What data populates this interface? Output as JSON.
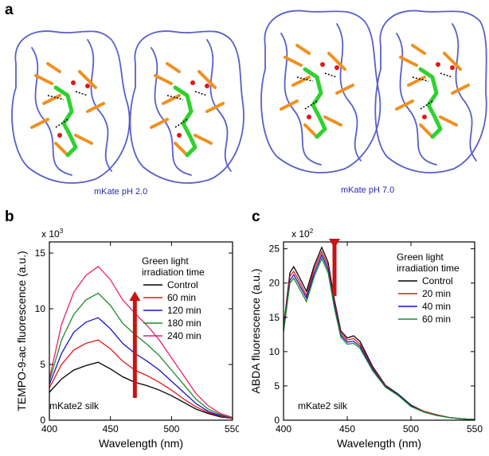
{
  "figure": {
    "panel_a": {
      "letter": "a",
      "left_caption": "mKate pH 2.0",
      "right_caption": "mKate pH 7.0"
    },
    "panel_b": {
      "letter": "b",
      "multiplier": "x 10",
      "multiplier_exp": "3",
      "sample_label": "mKate2 silk"
    },
    "panel_c": {
      "letter": "c",
      "multiplier": "x 10",
      "multiplier_exp": "2",
      "sample_label": "mKate2 silk"
    },
    "colors": {
      "protein_backbone": "#5a5fc8",
      "residues": "#f0901e",
      "chromophore": "#2fd12f",
      "arrow": "#c81414"
    }
  },
  "chart_data": [
    {
      "type": "line",
      "panel": "b",
      "xlabel": "Wavelength (nm)",
      "ylabel": "TEMPO-9-ac fluorescence (a.u.)",
      "xlim": [
        400,
        550
      ],
      "ylim": [
        0,
        16
      ],
      "x_ticks": [
        "400",
        "450",
        "500",
        "550"
      ],
      "y_ticks": [
        "0",
        "5",
        "10",
        "15"
      ],
      "legend_title": [
        "Green light",
        "irradiation time"
      ],
      "legend_position": "top-right",
      "arrow_direction": "up",
      "x": [
        400,
        410,
        420,
        430,
        440,
        450,
        460,
        470,
        480,
        490,
        500,
        510,
        520,
        530,
        540,
        550
      ],
      "series": [
        {
          "name": "Control",
          "color": "#000000",
          "values": [
            2.5,
            3.7,
            4.5,
            4.9,
            5.2,
            4.6,
            3.9,
            3.4,
            3.1,
            2.7,
            2.2,
            1.6,
            1.0,
            0.6,
            0.3,
            0.15
          ]
        },
        {
          "name": "60 min",
          "color": "#e8161c",
          "values": [
            2.9,
            5.0,
            6.3,
            6.9,
            7.2,
            6.4,
            5.3,
            4.5,
            4.0,
            3.4,
            2.7,
            1.9,
            1.2,
            0.7,
            0.35,
            0.15
          ]
        },
        {
          "name": "120 min",
          "color": "#1414c8",
          "values": [
            3.2,
            6.0,
            7.9,
            8.8,
            9.2,
            8.2,
            6.9,
            6.0,
            5.3,
            4.5,
            3.5,
            2.5,
            1.5,
            0.8,
            0.4,
            0.2
          ]
        },
        {
          "name": "180 min",
          "color": "#1a8a2a",
          "values": [
            3.5,
            7.2,
            9.5,
            10.8,
            11.4,
            10.3,
            8.7,
            7.7,
            6.8,
            5.8,
            4.5,
            3.2,
            1.9,
            1.0,
            0.5,
            0.2
          ]
        },
        {
          "name": "240 min",
          "color": "#e8246a",
          "values": [
            3.7,
            8.6,
            11.5,
            13.0,
            13.8,
            12.6,
            10.8,
            9.6,
            8.5,
            7.2,
            5.6,
            4.0,
            2.4,
            1.3,
            0.6,
            0.25
          ]
        }
      ]
    },
    {
      "type": "line",
      "panel": "c",
      "xlabel": "Wavelength (nm)",
      "ylabel": "ABDA fluorescence (a.u.)",
      "xlim": [
        400,
        550
      ],
      "ylim": [
        0,
        26
      ],
      "x_ticks": [
        "400",
        "450",
        "500",
        "550"
      ],
      "y_ticks": [
        "0",
        "5",
        "10",
        "15",
        "20",
        "25"
      ],
      "legend_title": [
        "Green light",
        "irradiation time"
      ],
      "legend_position": "top-right",
      "arrow_direction": "down",
      "x": [
        400,
        405,
        408,
        412,
        418,
        424,
        430,
        435,
        440,
        445,
        450,
        455,
        460,
        470,
        480,
        490,
        500,
        510,
        520,
        530,
        540,
        550
      ],
      "series": [
        {
          "name": "Control",
          "color": "#000000",
          "values": [
            13.5,
            21.5,
            22.4,
            21.0,
            18.8,
            22.5,
            25.2,
            23.0,
            17.5,
            13.0,
            12.0,
            12.3,
            11.5,
            7.8,
            5.1,
            3.8,
            2.2,
            1.3,
            0.8,
            0.4,
            0.2,
            0.1
          ]
        },
        {
          "name": "20 min",
          "color": "#e8161c",
          "values": [
            13.2,
            21.0,
            21.7,
            20.4,
            18.2,
            22.0,
            24.6,
            22.5,
            17.1,
            12.7,
            11.7,
            11.9,
            11.1,
            7.6,
            5.0,
            3.7,
            2.1,
            1.3,
            0.8,
            0.4,
            0.2,
            0.1
          ]
        },
        {
          "name": "40 min",
          "color": "#1414c8",
          "values": [
            13.0,
            20.4,
            21.2,
            19.9,
            17.8,
            21.4,
            24.1,
            22.0,
            16.7,
            12.4,
            11.4,
            11.5,
            10.8,
            7.4,
            4.9,
            3.7,
            2.1,
            1.2,
            0.7,
            0.4,
            0.2,
            0.1
          ]
        },
        {
          "name": "60 min",
          "color": "#1a8a2a",
          "values": [
            12.8,
            20.0,
            20.7,
            19.4,
            17.3,
            20.9,
            23.6,
            21.5,
            16.3,
            12.1,
            11.1,
            11.2,
            10.5,
            7.2,
            4.8,
            3.6,
            2.0,
            1.2,
            0.7,
            0.4,
            0.2,
            0.1
          ]
        }
      ]
    }
  ]
}
